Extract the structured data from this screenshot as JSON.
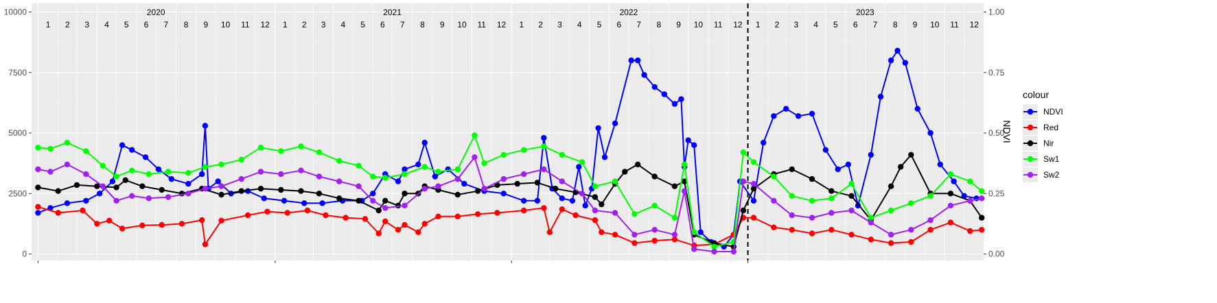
{
  "chart_data": {
    "type": "line",
    "title": "",
    "xlabel": "",
    "ylabel": "",
    "y2label": "NDVI",
    "x_range": [
      "2019-12-22",
      "2023-12-31"
    ],
    "ylim": [
      0,
      10000
    ],
    "y2lim": [
      0,
      1
    ],
    "y_ticks": [
      0,
      2500,
      5000,
      7500,
      10000
    ],
    "y2_ticks": [
      "0.00",
      "0.25",
      "0.50",
      "0.75",
      "1.00"
    ],
    "grid": true,
    "vline_date": "2023-01-01",
    "years": [
      {
        "label": "2020",
        "mid": "2020-07-01"
      },
      {
        "label": "2021",
        "mid": "2021-07-01"
      },
      {
        "label": "2022",
        "mid": "2022-07-01"
      },
      {
        "label": "2023",
        "mid": "2023-07-01"
      }
    ],
    "months": [
      "1",
      "2",
      "3",
      "4",
      "5",
      "6",
      "7",
      "8",
      "9",
      "10",
      "11",
      "12"
    ],
    "legend": {
      "title": "colour",
      "position": "right"
    },
    "series": [
      {
        "name": "NDVI",
        "color": "#0000ff",
        "axis": "right",
        "x": [
          "2020-01-01",
          "2020-01-20",
          "2020-02-15",
          "2020-03-15",
          "2020-04-05",
          "2020-04-25",
          "2020-05-10",
          "2020-05-25",
          "2020-06-15",
          "2020-07-05",
          "2020-07-25",
          "2020-08-20",
          "2020-09-10",
          "2020-09-15",
          "2020-09-20",
          "2020-10-05",
          "2020-10-25",
          "2020-11-20",
          "2020-12-15",
          "2021-01-15",
          "2021-02-15",
          "2021-03-15",
          "2021-04-15",
          "2021-05-15",
          "2021-06-01",
          "2021-06-20",
          "2021-07-10",
          "2021-07-20",
          "2021-08-10",
          "2021-08-20",
          "2021-09-05",
          "2021-09-25",
          "2021-10-20",
          "2021-11-20",
          "2021-12-20",
          "2022-01-20",
          "2022-02-10",
          "2022-02-20",
          "2022-03-05",
          "2022-03-20",
          "2022-04-05",
          "2022-04-15",
          "2022-04-25",
          "2022-05-05",
          "2022-05-15",
          "2022-05-25",
          "2022-06-10",
          "2022-07-05",
          "2022-07-15",
          "2022-07-25",
          "2022-08-10",
          "2022-08-25",
          "2022-09-10",
          "2022-09-20",
          "2022-09-25",
          "2022-10-01",
          "2022-10-10",
          "2022-10-20",
          "2022-11-05",
          "2022-11-25",
          "2022-12-10",
          "2022-12-20",
          "2023-01-10",
          "2023-01-25",
          "2023-02-10",
          "2023-03-01",
          "2023-03-20",
          "2023-04-10",
          "2023-05-01",
          "2023-05-20",
          "2023-06-05",
          "2023-06-20",
          "2023-07-10",
          "2023-07-25",
          "2023-08-10",
          "2023-08-20",
          "2023-09-01",
          "2023-09-20",
          "2023-10-10",
          "2023-10-25",
          "2023-11-15",
          "2023-12-01",
          "2023-12-20"
        ],
        "values": [
          0.17,
          0.19,
          0.21,
          0.22,
          0.25,
          0.3,
          0.45,
          0.43,
          0.4,
          0.35,
          0.31,
          0.29,
          0.33,
          0.53,
          0.27,
          0.3,
          0.25,
          0.26,
          0.23,
          0.22,
          0.21,
          0.21,
          0.22,
          0.22,
          0.25,
          0.33,
          0.3,
          0.35,
          0.37,
          0.46,
          0.32,
          0.35,
          0.29,
          0.26,
          0.25,
          0.22,
          0.22,
          0.48,
          0.27,
          0.23,
          0.22,
          0.36,
          0.2,
          0.27,
          0.52,
          0.4,
          0.54,
          0.8,
          0.8,
          0.74,
          0.69,
          0.66,
          0.62,
          0.64,
          0.36,
          0.47,
          0.45,
          0.09,
          0.05,
          0.03,
          0.08,
          0.3,
          0.22,
          0.46,
          0.57,
          0.6,
          0.57,
          0.58,
          0.43,
          0.35,
          0.37,
          0.2,
          0.41,
          0.65,
          0.8,
          0.84,
          0.79,
          0.6,
          0.5,
          0.37,
          0.3,
          0.24,
          0.23
        ]
      },
      {
        "name": "Red",
        "color": "#ff0000",
        "axis": "left",
        "x": [
          "2020-01-01",
          "2020-02-01",
          "2020-03-10",
          "2020-04-01",
          "2020-04-20",
          "2020-05-10",
          "2020-06-10",
          "2020-07-10",
          "2020-08-10",
          "2020-09-10",
          "2020-09-15",
          "2020-10-10",
          "2020-11-20",
          "2020-12-20",
          "2021-01-20",
          "2021-02-20",
          "2021-03-20",
          "2021-04-20",
          "2021-05-20",
          "2021-06-10",
          "2021-06-20",
          "2021-07-10",
          "2021-07-20",
          "2021-08-10",
          "2021-08-20",
          "2021-09-10",
          "2021-10-10",
          "2021-11-10",
          "2021-12-10",
          "2022-01-20",
          "2022-02-20",
          "2022-03-01",
          "2022-03-20",
          "2022-04-10",
          "2022-05-10",
          "2022-05-20",
          "2022-06-10",
          "2022-07-10",
          "2022-08-10",
          "2022-09-10",
          "2022-10-10",
          "2022-11-10",
          "2022-12-10",
          "2022-12-25",
          "2023-01-10",
          "2023-02-10",
          "2023-03-10",
          "2023-04-10",
          "2023-05-10",
          "2023-06-10",
          "2023-07-10",
          "2023-08-10",
          "2023-09-10",
          "2023-10-10",
          "2023-11-10",
          "2023-12-10",
          "2023-12-28"
        ],
        "values": [
          1950,
          1700,
          1800,
          1250,
          1380,
          1050,
          1180,
          1200,
          1250,
          1400,
          400,
          1380,
          1600,
          1750,
          1700,
          1800,
          1600,
          1500,
          1450,
          850,
          1350,
          1000,
          1200,
          900,
          1250,
          1550,
          1550,
          1650,
          1700,
          1800,
          1900,
          900,
          1850,
          1600,
          1400,
          900,
          800,
          450,
          550,
          600,
          350,
          400,
          800,
          1500,
          1500,
          1100,
          1000,
          850,
          1000,
          800,
          600,
          450,
          500,
          1000,
          1300,
          950,
          1000
        ]
      },
      {
        "name": "Nir",
        "color": "#000000",
        "axis": "left",
        "x": [
          "2020-01-01",
          "2020-02-01",
          "2020-03-01",
          "2020-04-01",
          "2020-05-01",
          "2020-05-15",
          "2020-06-10",
          "2020-07-10",
          "2020-08-10",
          "2020-09-10",
          "2020-10-10",
          "2020-11-10",
          "2020-12-10",
          "2021-01-10",
          "2021-02-10",
          "2021-03-10",
          "2021-04-10",
          "2021-05-10",
          "2021-06-10",
          "2021-06-20",
          "2021-07-10",
          "2021-07-20",
          "2021-08-10",
          "2021-08-20",
          "2021-09-10",
          "2021-10-10",
          "2021-11-10",
          "2021-12-10",
          "2022-01-10",
          "2022-02-10",
          "2022-03-10",
          "2022-04-10",
          "2022-05-10",
          "2022-05-20",
          "2022-06-10",
          "2022-06-25",
          "2022-07-15",
          "2022-08-10",
          "2022-09-10",
          "2022-09-25",
          "2022-10-10",
          "2022-11-10",
          "2022-12-10",
          "2022-12-25",
          "2023-01-10",
          "2023-02-10",
          "2023-03-10",
          "2023-04-10",
          "2023-05-10",
          "2023-06-10",
          "2023-07-10",
          "2023-08-10",
          "2023-08-25",
          "2023-09-10",
          "2023-10-10",
          "2023-11-10",
          "2023-12-10",
          "2023-12-28"
        ],
        "values": [
          2750,
          2600,
          2850,
          2800,
          2750,
          3050,
          2800,
          2650,
          2500,
          2700,
          2450,
          2600,
          2700,
          2650,
          2600,
          2500,
          2300,
          2200,
          1800,
          2200,
          2000,
          2500,
          2500,
          2800,
          2650,
          2450,
          2600,
          2850,
          2900,
          2950,
          2700,
          2550,
          2350,
          2050,
          2900,
          3400,
          3700,
          3200,
          2800,
          3000,
          800,
          450,
          300,
          1800,
          2700,
          3300,
          3500,
          3100,
          2600,
          2400,
          1400,
          2800,
          3600,
          4100,
          2500,
          2500,
          2200,
          1500
        ]
      },
      {
        "name": "Sw1",
        "color": "#00ff00",
        "axis": "left",
        "x": [
          "2020-01-01",
          "2020-01-20",
          "2020-02-15",
          "2020-03-15",
          "2020-04-10",
          "2020-05-01",
          "2020-05-25",
          "2020-06-20",
          "2020-07-20",
          "2020-08-20",
          "2020-09-15",
          "2020-10-10",
          "2020-11-10",
          "2020-12-10",
          "2021-01-10",
          "2021-02-10",
          "2021-03-10",
          "2021-04-10",
          "2021-05-10",
          "2021-06-01",
          "2021-06-20",
          "2021-07-20",
          "2021-08-20",
          "2021-09-10",
          "2021-10-10",
          "2021-11-05",
          "2021-11-20",
          "2021-12-20",
          "2022-01-20",
          "2022-02-20",
          "2022-03-20",
          "2022-04-20",
          "2022-05-10",
          "2022-06-10",
          "2022-07-10",
          "2022-08-10",
          "2022-09-10",
          "2022-09-25",
          "2022-10-10",
          "2022-11-10",
          "2022-12-10",
          "2022-12-25",
          "2023-01-10",
          "2023-02-10",
          "2023-03-10",
          "2023-04-10",
          "2023-05-10",
          "2023-06-10",
          "2023-07-10",
          "2023-08-10",
          "2023-09-10",
          "2023-10-10",
          "2023-11-10",
          "2023-12-10",
          "2023-12-28"
        ],
        "values": [
          4400,
          4350,
          4600,
          4250,
          3650,
          3200,
          3450,
          3300,
          3400,
          3350,
          3600,
          3700,
          3900,
          4400,
          4250,
          4450,
          4200,
          3850,
          3650,
          3200,
          3150,
          3300,
          3600,
          3400,
          3500,
          4900,
          3750,
          4100,
          4300,
          4450,
          4100,
          3800,
          2800,
          3000,
          1650,
          2000,
          1500,
          3700,
          900,
          300,
          500,
          4200,
          3800,
          3200,
          2400,
          2200,
          2300,
          2900,
          1500,
          1800,
          2100,
          2400,
          3300,
          3000,
          2600
        ]
      },
      {
        "name": "Sw2",
        "color": "#a020f0",
        "axis": "left",
        "x": [
          "2020-01-01",
          "2020-01-20",
          "2020-02-15",
          "2020-03-15",
          "2020-04-10",
          "2020-05-01",
          "2020-05-25",
          "2020-06-20",
          "2020-07-20",
          "2020-08-20",
          "2020-09-15",
          "2020-10-10",
          "2020-11-10",
          "2020-12-10",
          "2021-01-10",
          "2021-02-10",
          "2021-03-10",
          "2021-04-10",
          "2021-05-10",
          "2021-06-01",
          "2021-06-20",
          "2021-07-20",
          "2021-08-20",
          "2021-09-10",
          "2021-10-10",
          "2021-11-05",
          "2021-11-20",
          "2021-12-20",
          "2022-01-20",
          "2022-02-20",
          "2022-03-20",
          "2022-04-20",
          "2022-05-10",
          "2022-06-10",
          "2022-07-10",
          "2022-08-10",
          "2022-09-10",
          "2022-09-25",
          "2022-10-10",
          "2022-11-10",
          "2022-12-10",
          "2022-12-25",
          "2023-01-10",
          "2023-02-10",
          "2023-03-10",
          "2023-04-10",
          "2023-05-10",
          "2023-06-10",
          "2023-07-10",
          "2023-08-10",
          "2023-09-10",
          "2023-10-10",
          "2023-11-10",
          "2023-12-10",
          "2023-12-28"
        ],
        "values": [
          3500,
          3400,
          3700,
          3300,
          2800,
          2200,
          2400,
          2300,
          2350,
          2500,
          2700,
          2800,
          3100,
          3400,
          3300,
          3450,
          3200,
          3000,
          2800,
          2200,
          1900,
          2000,
          2700,
          2800,
          3100,
          4000,
          2700,
          3100,
          3300,
          3500,
          3000,
          2500,
          1800,
          1700,
          800,
          1000,
          800,
          2600,
          200,
          100,
          100,
          3000,
          2900,
          2200,
          1600,
          1500,
          1700,
          1800,
          1300,
          800,
          1000,
          1400,
          2000,
          2200,
          2300
        ]
      }
    ]
  }
}
